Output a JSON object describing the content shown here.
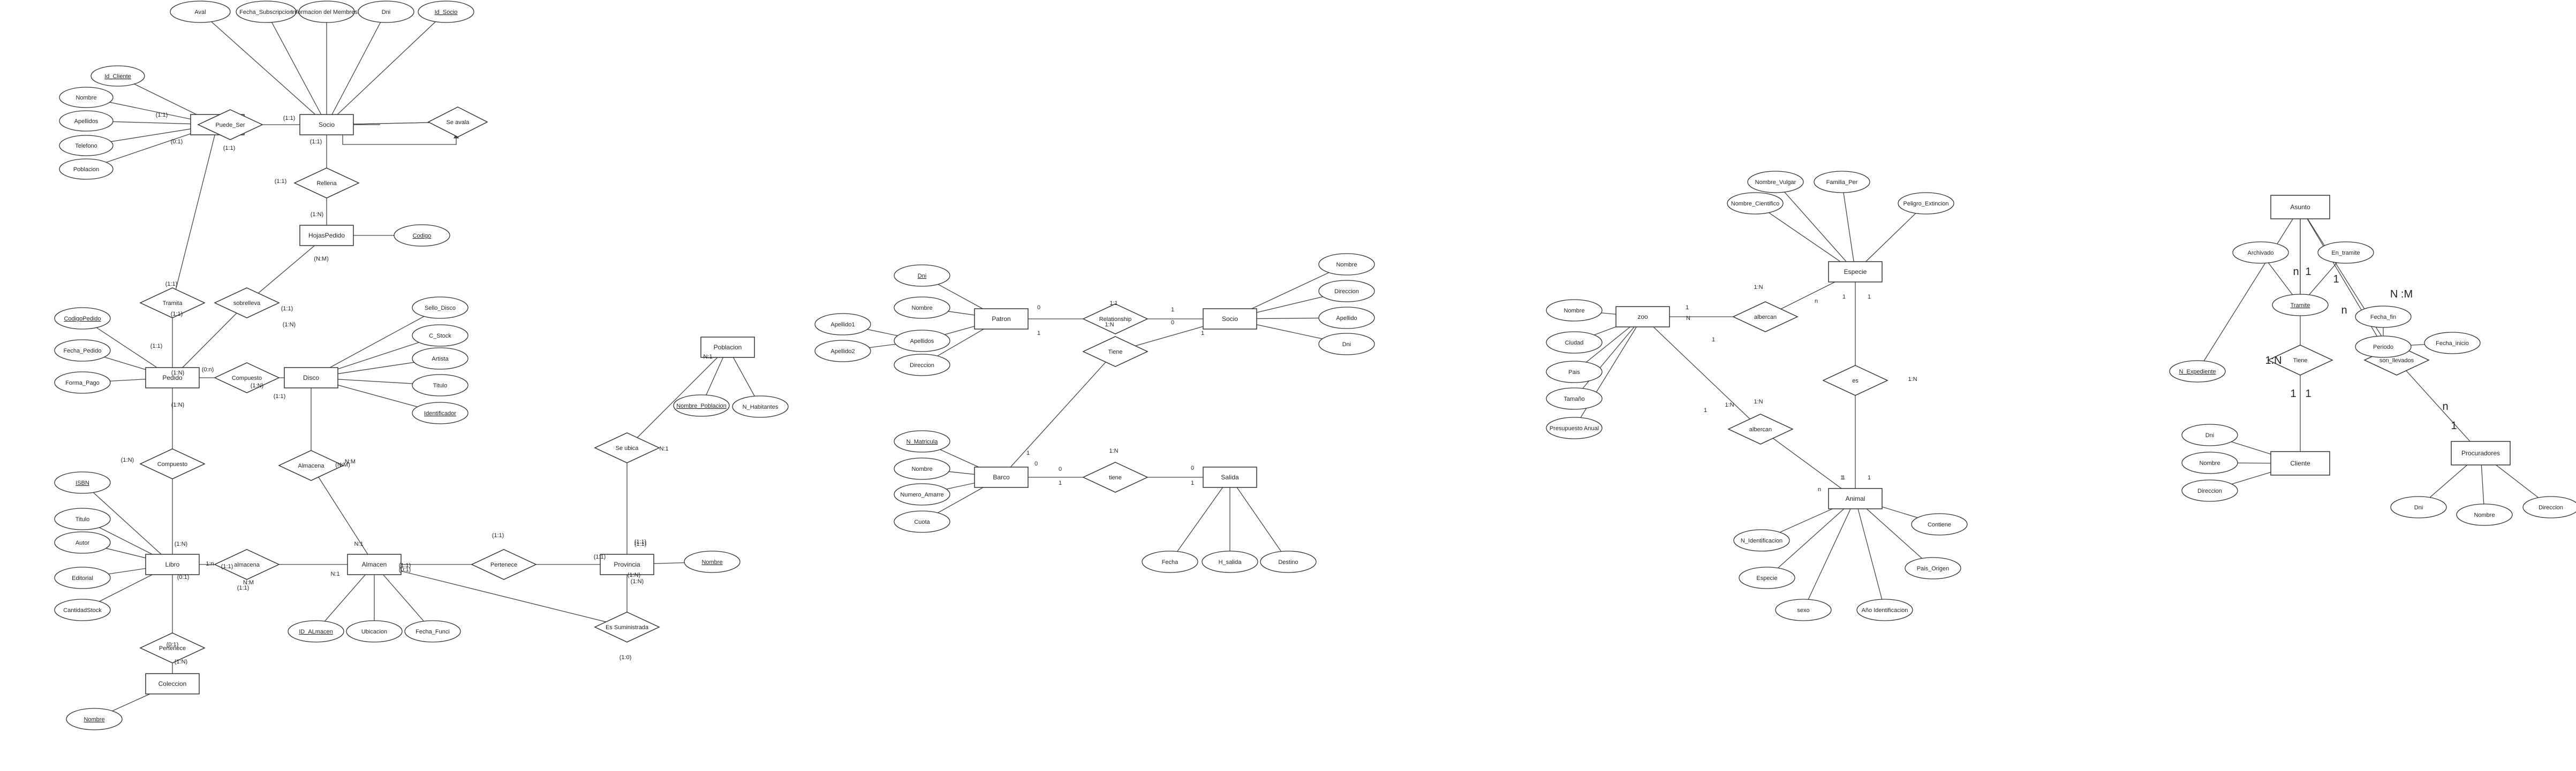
{
  "diagrams": [
    {
      "entities": [
        "Cliente",
        "Socio",
        "HojasPedido",
        "Pedido",
        "Disco",
        "Libro",
        "Almacen",
        "Provincia",
        "Poblacion",
        "Coleccion"
      ],
      "relationships": [
        "Puede_Ser",
        "Se avala",
        "Rellena",
        "Tramita",
        "sobrelleva",
        "Compuesto",
        "Compuesto",
        "Almacena",
        "almacena",
        "Pertenece",
        "Pertenece",
        "Se ubica",
        "Es Suministrada"
      ],
      "attributes": [
        "Aval",
        "Fecha_Subscripcion",
        "Informacion del Membresia",
        "Dni",
        "Id_Socio",
        "Id_Cliente",
        "Nombre",
        "Apellidos",
        "Telefono",
        "Poblacion",
        "Codigo",
        "CodigoPedido",
        "Fecha_Pedido",
        "Forma_Pago",
        "Sello_Disco",
        "C_Stock",
        "Artista",
        "Titulo",
        "Identificador",
        "ISBN",
        "Titulo",
        "Autor",
        "Editorial",
        "CantidadStock",
        "Nombre",
        "ID_ALmacen",
        "Ubicacion",
        "Fecha_Funci",
        "Nombre",
        "Nombre_Poblacion",
        "N_Habitantes"
      ],
      "cardinalities": [
        "(1:1)",
        "(1:1)",
        "(1:1)",
        "(1:1)",
        "(1:1)",
        "(1:N)",
        "(N:M)",
        "(0:1)",
        "(1:1)",
        "(1:N)",
        "(0:n)",
        "(1:1)",
        "(1:N)",
        "(1:1)",
        "(1:1)",
        "(1:N)",
        "(1:1)",
        "(1:N)",
        "(1:N)",
        "(1:N)",
        "(0:1)",
        "(1:N)",
        "(1:1)",
        "(0:1)",
        "(N:M)",
        "(1:1)",
        "1:n",
        "N:M",
        "N:M",
        "N:1",
        "N:1",
        "(0:1)",
        "(1:1)",
        "(1:1)",
        "(1:1)",
        "(1:1)",
        "(1:N)",
        "(1:0)",
        "(1:1)",
        "(1:N)",
        "N:1",
        "N:1"
      ]
    },
    {
      "entities": [
        "Patron",
        "Socio",
        "Barco",
        "Salida"
      ],
      "relationships": [
        "Relationship",
        "Tiene",
        "tiene"
      ],
      "attributes": [
        "Dni",
        "Nombre",
        "Apellido1",
        "Apellido2",
        "Apellidos",
        "Direccion",
        "Nombre",
        "Direccion",
        "Apellido",
        "Dni",
        "N_Matricula",
        "Nombre",
        "Numero_Amarre",
        "Cuota",
        "Fecha",
        "H_salida",
        "Destino"
      ],
      "cardinalities": [
        "0",
        "1",
        "1:1",
        "1",
        "0",
        "1",
        "1:N",
        "1",
        "0",
        "1:N",
        "0",
        "1",
        "0",
        "1"
      ]
    },
    {
      "entities": [
        "Especie",
        "zoo",
        "Animal"
      ],
      "relationships": [
        "albercan",
        "albercan",
        "es"
      ],
      "attributes": [
        "Nombre_Vulgar",
        "Familia_Per",
        "Nombre_Cientifico",
        "Peligro_Extincion",
        "Nombre",
        "Ciudad",
        "Pais",
        "Tamaño",
        "Presupuesto Anual",
        "N_Identificacion",
        "Contiene",
        "Especie",
        "Pais_Origen",
        "sexo",
        "Año Identificacion"
      ],
      "cardinalities": [
        "1:N",
        "n",
        "1",
        "1",
        "1",
        "N",
        "1",
        "1:N",
        "1",
        "n",
        "1",
        "1",
        "1",
        "1:N",
        "1:N"
      ]
    },
    {
      "entities": [
        "Asunto",
        "Cliente",
        "Procuradores"
      ],
      "relationships": [
        "Tiene",
        "son_llevados"
      ],
      "attributes": [
        "Archivado",
        "En_tramite",
        "Tramite",
        "Fecha_fin",
        "N_Expediente",
        "Periodo",
        "Fecha_inicio",
        "Dni",
        "Nombre",
        "Direccion",
        "Dni",
        "Nombre",
        "Direccion"
      ],
      "cardinalities": [
        "n",
        "1",
        "1",
        "n",
        "N :M",
        "1:N",
        "1",
        "1",
        "1",
        "n"
      ]
    }
  ]
}
